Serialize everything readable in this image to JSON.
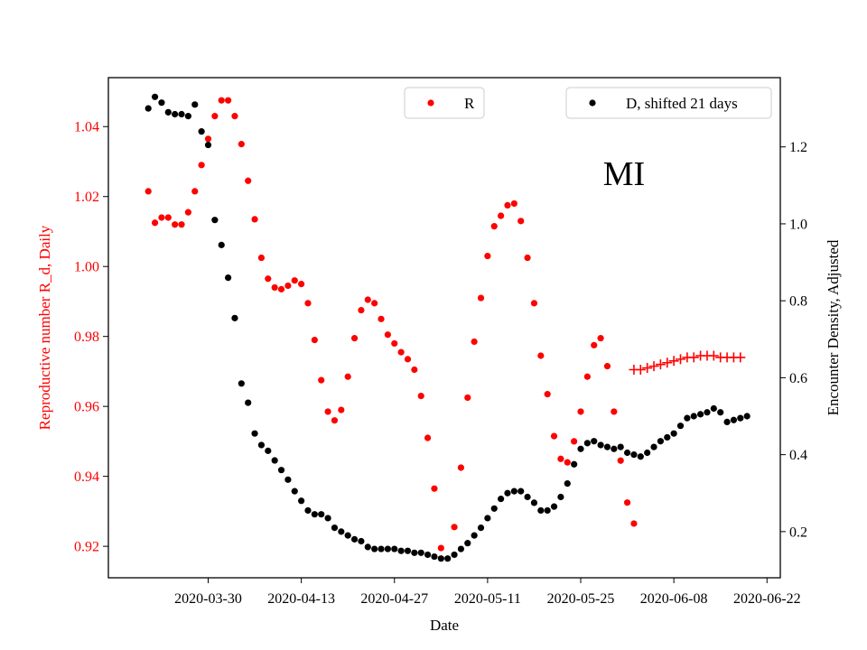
{
  "chart_data": {
    "type": "scatter",
    "title": "",
    "annotation": "MI",
    "xlabel": "Date",
    "ylabel_left": "Reproductive number R_d, Daily",
    "ylabel_right": "Encounter Density, Adjusted",
    "x_start": "2020-03-21",
    "x_tick_labels": [
      "2020-03-30",
      "2020-04-13",
      "2020-04-27",
      "2020-05-11",
      "2020-05-25",
      "2020-06-08",
      "2020-06-22"
    ],
    "xlim": [
      "2020-03-15",
      "2020-06-24"
    ],
    "ylim_left": [
      0.911,
      1.054
    ],
    "yticks_left": [
      "0.92",
      "0.94",
      "0.96",
      "0.98",
      "1.00",
      "1.02",
      "1.04"
    ],
    "ylim_right": [
      0.08,
      1.38
    ],
    "yticks_right": [
      "0.2",
      "0.4",
      "0.6",
      "0.8",
      "1.0",
      "1.2"
    ],
    "left_color": "#ff0000",
    "right_color": "#000000",
    "grid": false,
    "legends": [
      {
        "label": "R",
        "color": "#ff0000",
        "marker": "dot",
        "position": "upper-center"
      },
      {
        "label": "D, shifted 21 days",
        "color": "#000000",
        "marker": "dot",
        "position": "upper-right"
      }
    ],
    "series": [
      {
        "name": "R",
        "axis": "left",
        "color": "#ff0000",
        "marker": "dot",
        "values": [
          1.0215,
          1.0125,
          1.014,
          1.014,
          1.012,
          1.012,
          1.0155,
          1.0215,
          1.029,
          1.0365,
          1.043,
          1.0475,
          1.0475,
          1.043,
          1.035,
          1.0245,
          1.0135,
          1.0025,
          0.9965,
          0.994,
          0.9935,
          0.9945,
          0.996,
          0.995,
          0.9895,
          0.979,
          0.9675,
          0.9585,
          0.956,
          0.959,
          0.9685,
          0.9795,
          0.9875,
          0.9905,
          0.9895,
          0.985,
          0.9805,
          0.978,
          0.9755,
          0.9735,
          0.9705,
          0.963,
          0.951,
          0.9365,
          0.9195,
          null,
          0.9255,
          0.9425,
          0.9625,
          0.9785,
          0.991,
          1.003,
          1.0115,
          1.0145,
          1.0175,
          1.018,
          1.013,
          1.0025,
          0.9895,
          0.9745,
          0.9635,
          0.9515,
          0.945,
          0.944,
          0.95,
          0.9585,
          0.9685,
          0.9775,
          0.9795,
          0.9715,
          0.9585,
          0.9445,
          0.9325,
          0.9265
        ]
      },
      {
        "name": "R (projected)",
        "axis": "left",
        "color": "#ff0000",
        "marker": "plus",
        "start_index": 73,
        "values": [
          0.9705,
          0.9705,
          0.971,
          0.9715,
          0.972,
          0.9725,
          0.973,
          0.9735,
          0.974,
          0.974,
          0.9745,
          0.9745,
          0.9745,
          0.974,
          0.974,
          0.974,
          0.974
        ]
      },
      {
        "name": "D, shifted 21 days",
        "axis": "right",
        "color": "#000000",
        "marker": "dot",
        "values": [
          1.3,
          1.33,
          1.315,
          1.29,
          1.285,
          1.285,
          1.28,
          1.31,
          1.24,
          1.205,
          1.01,
          0.945,
          0.86,
          0.755,
          0.585,
          0.535,
          0.455,
          0.425,
          0.41,
          0.385,
          0.36,
          0.335,
          0.305,
          0.28,
          0.255,
          0.245,
          0.245,
          0.235,
          0.21,
          0.2,
          0.19,
          0.18,
          0.175,
          0.16,
          0.155,
          0.155,
          0.155,
          0.155,
          0.15,
          0.15,
          0.145,
          0.145,
          0.14,
          0.135,
          0.13,
          0.13,
          0.14,
          0.155,
          0.17,
          0.19,
          0.21,
          0.235,
          0.26,
          0.285,
          0.3,
          0.305,
          0.305,
          0.29,
          0.275,
          0.255,
          0.255,
          0.265,
          0.29,
          0.325,
          0.375,
          0.415,
          0.43,
          0.435,
          0.425,
          0.42,
          0.415,
          0.42,
          0.405,
          0.4,
          0.395,
          0.405,
          0.42,
          0.435,
          0.445,
          0.455,
          0.475,
          0.495,
          0.5,
          0.505,
          0.51,
          0.52,
          0.51,
          0.485,
          0.49,
          0.495,
          0.5
        ]
      }
    ]
  }
}
